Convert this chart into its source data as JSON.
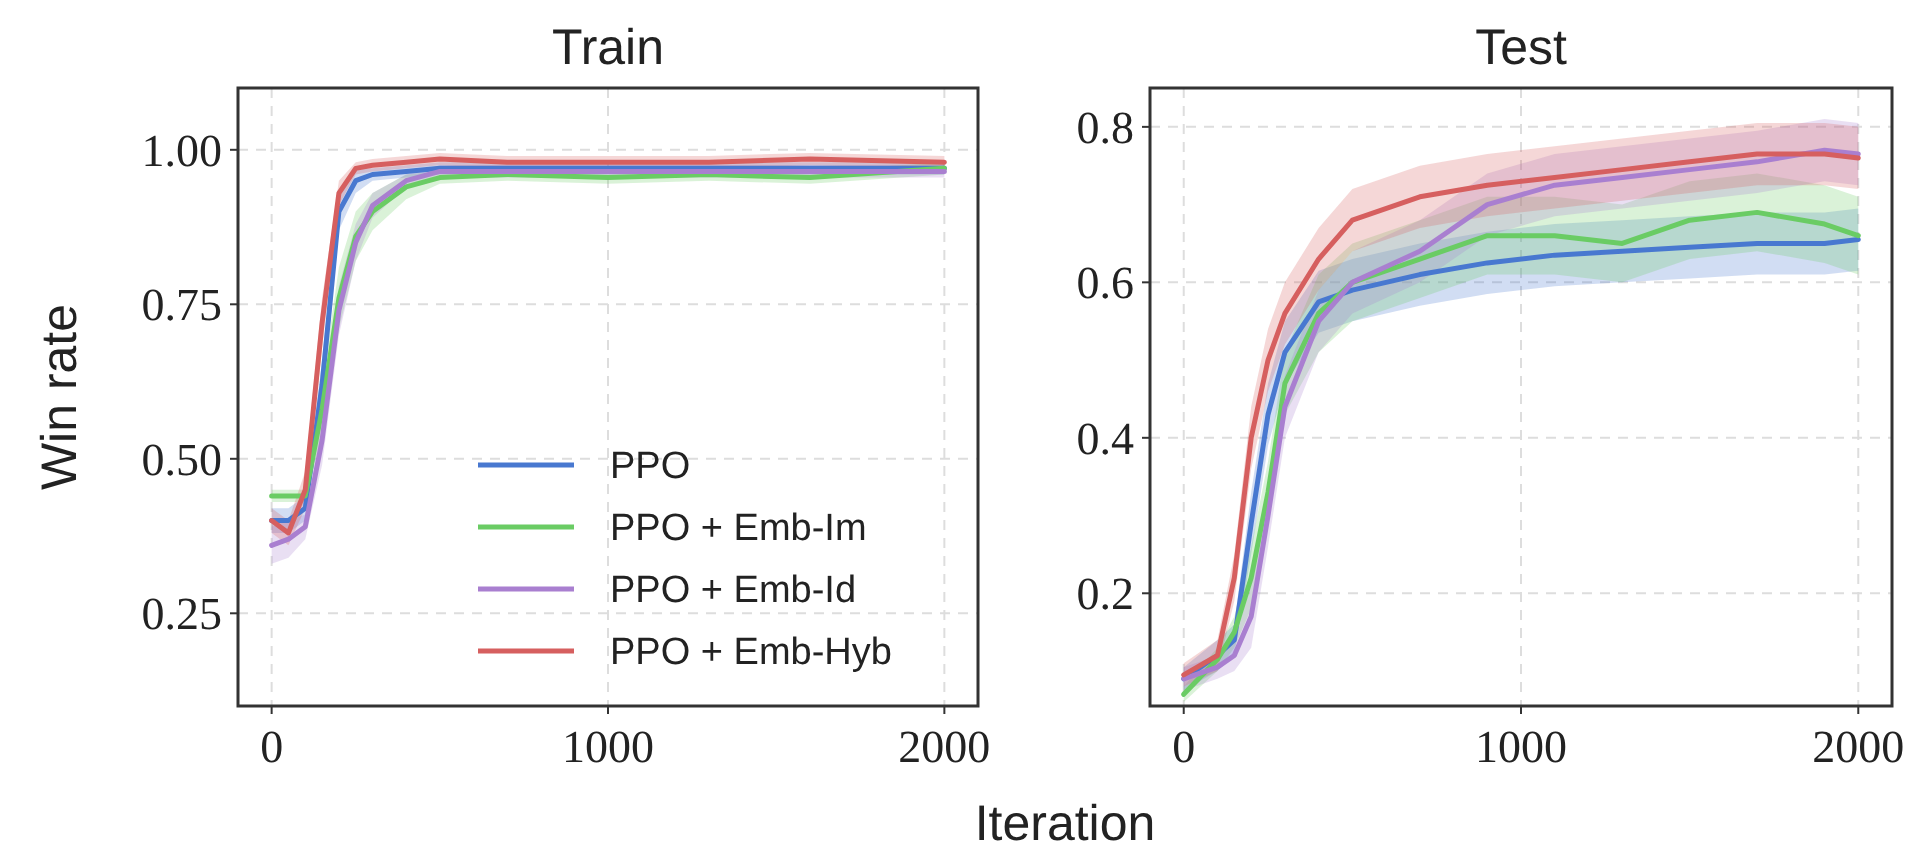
{
  "chart_data": [
    {
      "type": "line",
      "title": "Train",
      "xlabel": "Iteration",
      "ylabel": "Win rate",
      "grid": true,
      "legend": "bottom right",
      "x": [
        0,
        50,
        100,
        150,
        200,
        250,
        300,
        400,
        500,
        700,
        1000,
        1300,
        1600,
        2000
      ],
      "xlim": [
        -100,
        2100
      ],
      "xticks": [
        0,
        1000,
        2000
      ],
      "ylim": [
        0.1,
        1.1
      ],
      "yticks": [
        {
          "value": 0.25,
          "label": "0.25"
        },
        {
          "value": 0.5,
          "label": "0.50"
        },
        {
          "value": 0.75,
          "label": "0.75"
        },
        {
          "value": 1.0,
          "label": "1.00"
        }
      ],
      "series": [
        {
          "name": "PPO",
          "color": "#4878d0",
          "values": [
            0.4,
            0.4,
            0.42,
            0.62,
            0.9,
            0.95,
            0.96,
            0.965,
            0.97,
            0.97,
            0.97,
            0.97,
            0.97,
            0.97
          ],
          "lower": [
            0.38,
            0.38,
            0.4,
            0.58,
            0.87,
            0.93,
            0.95,
            0.955,
            0.96,
            0.96,
            0.96,
            0.96,
            0.96,
            0.96
          ],
          "upper": [
            0.42,
            0.42,
            0.44,
            0.66,
            0.93,
            0.97,
            0.97,
            0.975,
            0.98,
            0.98,
            0.98,
            0.98,
            0.98,
            0.98
          ]
        },
        {
          "name": "PPO + Emb-Im",
          "color": "#6acc64",
          "values": [
            0.44,
            0.44,
            0.44,
            0.58,
            0.76,
            0.86,
            0.9,
            0.94,
            0.955,
            0.96,
            0.955,
            0.96,
            0.955,
            0.97
          ],
          "lower": [
            0.43,
            0.43,
            0.43,
            0.54,
            0.71,
            0.82,
            0.87,
            0.92,
            0.945,
            0.95,
            0.945,
            0.95,
            0.945,
            0.96
          ],
          "upper": [
            0.45,
            0.45,
            0.45,
            0.62,
            0.81,
            0.9,
            0.93,
            0.96,
            0.965,
            0.97,
            0.965,
            0.97,
            0.965,
            0.98
          ]
        },
        {
          "name": "PPO + Emb-Id",
          "color": "#a97fd0",
          "values": [
            0.36,
            0.37,
            0.39,
            0.53,
            0.74,
            0.85,
            0.91,
            0.95,
            0.965,
            0.965,
            0.965,
            0.965,
            0.965,
            0.965
          ],
          "lower": [
            0.33,
            0.34,
            0.37,
            0.49,
            0.7,
            0.82,
            0.89,
            0.94,
            0.955,
            0.955,
            0.955,
            0.955,
            0.955,
            0.955
          ],
          "upper": [
            0.39,
            0.4,
            0.41,
            0.57,
            0.78,
            0.88,
            0.93,
            0.96,
            0.975,
            0.975,
            0.975,
            0.975,
            0.975,
            0.975
          ]
        },
        {
          "name": "PPO + Emb-Hyb",
          "color": "#d65f5f",
          "values": [
            0.4,
            0.38,
            0.45,
            0.72,
            0.93,
            0.97,
            0.975,
            0.98,
            0.985,
            0.98,
            0.98,
            0.98,
            0.985,
            0.98
          ],
          "lower": [
            0.38,
            0.36,
            0.42,
            0.68,
            0.91,
            0.96,
            0.965,
            0.97,
            0.975,
            0.97,
            0.97,
            0.97,
            0.975,
            0.97
          ],
          "upper": [
            0.42,
            0.4,
            0.48,
            0.76,
            0.95,
            0.98,
            0.985,
            0.99,
            0.995,
            0.99,
            0.99,
            0.99,
            0.995,
            0.99
          ]
        }
      ]
    },
    {
      "type": "line",
      "title": "Test",
      "grid": true,
      "x": [
        0,
        100,
        150,
        200,
        250,
        300,
        400,
        500,
        700,
        900,
        1100,
        1300,
        1500,
        1700,
        1900,
        2000
      ],
      "xlim": [
        -100,
        2100
      ],
      "xticks": [
        0,
        1000,
        2000
      ],
      "ylim": [
        0.055,
        0.85
      ],
      "yticks": [
        0.2,
        0.4,
        0.6,
        0.8
      ],
      "series": [
        {
          "color": "#4878d0",
          "values": [
            0.09,
            0.12,
            0.14,
            0.29,
            0.43,
            0.51,
            0.575,
            0.59,
            0.61,
            0.625,
            0.635,
            0.64,
            0.645,
            0.65,
            0.65,
            0.655
          ],
          "lower": [
            0.075,
            0.1,
            0.12,
            0.25,
            0.39,
            0.47,
            0.535,
            0.55,
            0.57,
            0.585,
            0.595,
            0.6,
            0.605,
            0.61,
            0.61,
            0.615
          ],
          "upper": [
            0.105,
            0.14,
            0.16,
            0.33,
            0.47,
            0.55,
            0.615,
            0.63,
            0.65,
            0.665,
            0.675,
            0.68,
            0.685,
            0.69,
            0.69,
            0.695
          ]
        },
        {
          "color": "#6acc64",
          "values": [
            0.07,
            0.115,
            0.15,
            0.22,
            0.33,
            0.47,
            0.56,
            0.6,
            0.63,
            0.66,
            0.66,
            0.65,
            0.68,
            0.69,
            0.675,
            0.66
          ],
          "lower": [
            0.06,
            0.1,
            0.13,
            0.18,
            0.29,
            0.43,
            0.51,
            0.55,
            0.58,
            0.61,
            0.61,
            0.6,
            0.63,
            0.64,
            0.625,
            0.61
          ],
          "upper": [
            0.08,
            0.13,
            0.17,
            0.26,
            0.37,
            0.51,
            0.61,
            0.65,
            0.68,
            0.71,
            0.71,
            0.7,
            0.73,
            0.74,
            0.725,
            0.71
          ]
        },
        {
          "color": "#a97fd0",
          "values": [
            0.09,
            0.105,
            0.12,
            0.17,
            0.3,
            0.44,
            0.55,
            0.6,
            0.64,
            0.7,
            0.725,
            0.735,
            0.745,
            0.755,
            0.77,
            0.765
          ],
          "lower": [
            0.075,
            0.09,
            0.1,
            0.13,
            0.26,
            0.4,
            0.51,
            0.56,
            0.6,
            0.66,
            0.685,
            0.695,
            0.705,
            0.715,
            0.73,
            0.725
          ],
          "upper": [
            0.105,
            0.12,
            0.14,
            0.21,
            0.34,
            0.48,
            0.59,
            0.64,
            0.68,
            0.74,
            0.765,
            0.775,
            0.785,
            0.795,
            0.81,
            0.805
          ]
        },
        {
          "color": "#d65f5f",
          "values": [
            0.095,
            0.12,
            0.22,
            0.4,
            0.5,
            0.56,
            0.63,
            0.68,
            0.71,
            0.725,
            0.735,
            0.745,
            0.755,
            0.765,
            0.765,
            0.76
          ],
          "lower": [
            0.08,
            0.1,
            0.19,
            0.36,
            0.46,
            0.52,
            0.59,
            0.64,
            0.67,
            0.685,
            0.695,
            0.705,
            0.715,
            0.725,
            0.725,
            0.72
          ],
          "upper": [
            0.11,
            0.14,
            0.25,
            0.44,
            0.54,
            0.6,
            0.67,
            0.72,
            0.75,
            0.765,
            0.775,
            0.785,
            0.795,
            0.805,
            0.805,
            0.8
          ]
        }
      ]
    }
  ]
}
